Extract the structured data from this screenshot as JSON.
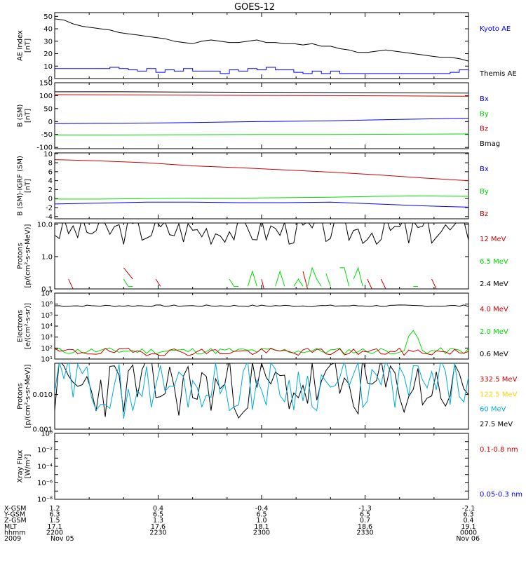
{
  "title": "GOES-12",
  "colors": {
    "black": "#000000",
    "blue": "#0000ff",
    "red": "#cc0000",
    "green": "#00dd00",
    "yellow": "#ffd000",
    "cyan": "#00aadd"
  },
  "chart_data": [
    {
      "type": "line",
      "id": "ae",
      "ylabel_lines": [
        "AE Index",
        "[nT]"
      ],
      "yticks": [
        {
          "v": 0,
          "label": "0"
        },
        {
          "v": 10,
          "label": "10"
        },
        {
          "v": 20,
          "label": "20"
        },
        {
          "v": 30,
          "label": "30"
        },
        {
          "v": 40,
          "label": "40"
        },
        {
          "v": 50,
          "label": "50"
        }
      ],
      "ylim": [
        0,
        53
      ],
      "log": false,
      "series": [
        {
          "name": "Kyoto AE",
          "color": "blue",
          "step": true,
          "t": [
            0,
            3,
            6,
            8,
            10,
            12,
            14,
            16,
            18,
            20,
            22,
            24,
            26,
            28,
            30,
            32,
            34,
            36,
            38,
            40,
            42,
            44,
            46,
            48,
            50,
            52,
            54,
            56,
            58,
            60,
            62,
            64,
            66,
            68,
            70,
            72,
            74,
            76,
            78,
            80,
            82,
            84,
            86,
            88,
            90
          ],
          "y": [
            8,
            8,
            8,
            8,
            8,
            9,
            8,
            7,
            6,
            8,
            5,
            7,
            6,
            8,
            6,
            6,
            6,
            4,
            7,
            6,
            8,
            7,
            9,
            7,
            7,
            5,
            4,
            6,
            4,
            6,
            4,
            4,
            4,
            4,
            4,
            4,
            4,
            4,
            4,
            4,
            4,
            4,
            5,
            7,
            5
          ]
        },
        {
          "name": "Themis AE",
          "color": "black",
          "step": false,
          "t": [
            0,
            2,
            4,
            6,
            8,
            10,
            12,
            14,
            16,
            18,
            20,
            22,
            24,
            26,
            28,
            30,
            32,
            34,
            36,
            38,
            40,
            42,
            44,
            46,
            48,
            50,
            52,
            54,
            56,
            58,
            60,
            62,
            64,
            66,
            68,
            70,
            72,
            74,
            76,
            78,
            80,
            82,
            84,
            86,
            88,
            90
          ],
          "y": [
            48,
            47,
            44,
            42,
            41,
            40,
            39,
            37,
            36,
            35,
            34,
            33,
            32,
            30,
            29,
            28,
            30,
            31,
            30,
            29,
            29,
            30,
            31,
            29,
            29,
            28,
            28,
            27,
            28,
            26,
            26,
            24,
            23,
            21,
            21,
            22,
            23,
            22,
            21,
            20,
            19,
            18,
            17,
            17,
            16,
            14
          ]
        }
      ],
      "legend": [
        {
          "label": "Kyoto AE",
          "color": "blue"
        },
        {
          "label": "Themis AE",
          "color": "black"
        }
      ]
    },
    {
      "type": "line",
      "id": "bsm",
      "ylabel_lines": [
        "B (SM)",
        "[nT]"
      ],
      "yticks": [
        {
          "v": -100,
          "label": "-100"
        },
        {
          "v": -50,
          "label": "-50"
        },
        {
          "v": 0,
          "label": "0"
        },
        {
          "v": 50,
          "label": "50"
        },
        {
          "v": 100,
          "label": "100"
        },
        {
          "v": 150,
          "label": "150"
        }
      ],
      "ylim": [
        -105,
        150
      ],
      "log": false,
      "series": [
        {
          "name": "Bx",
          "color": "blue",
          "t": [
            0,
            15,
            30,
            45,
            60,
            75,
            90
          ],
          "y": [
            -8,
            -7,
            -4,
            0,
            3,
            8,
            13
          ]
        },
        {
          "name": "By",
          "color": "green",
          "t": [
            0,
            15,
            30,
            45,
            60,
            75,
            90
          ],
          "y": [
            -52,
            -52,
            -51,
            -50,
            -50,
            -49,
            -48
          ]
        },
        {
          "name": "Bz",
          "color": "red",
          "t": [
            0,
            15,
            30,
            45,
            60,
            75,
            90
          ],
          "y": [
            104,
            103,
            102,
            101,
            100,
            99,
            98
          ]
        },
        {
          "name": "Bmag",
          "color": "black",
          "t": [
            0,
            15,
            30,
            45,
            60,
            75,
            90
          ],
          "y": [
            115,
            115,
            114,
            113,
            112,
            111,
            110
          ]
        }
      ],
      "legend": [
        {
          "label": "Bx",
          "color": "blue"
        },
        {
          "label": "By",
          "color": "green"
        },
        {
          "label": "Bz",
          "color": "red"
        },
        {
          "label": "Bmag",
          "color": "black"
        }
      ]
    },
    {
      "type": "line",
      "id": "bdiff",
      "ylabel_lines": [
        "B (SM)-IGRF (SM)",
        "[nT]"
      ],
      "yticks": [
        {
          "v": -4,
          "label": "-4"
        },
        {
          "v": -2,
          "label": "-2"
        },
        {
          "v": 0,
          "label": "0"
        },
        {
          "v": 2,
          "label": "2"
        },
        {
          "v": 4,
          "label": "4"
        },
        {
          "v": 6,
          "label": "6"
        },
        {
          "v": 8,
          "label": "8"
        },
        {
          "v": 10,
          "label": "10"
        }
      ],
      "ylim": [
        -4.5,
        10.2
      ],
      "log": false,
      "series": [
        {
          "name": "Bx",
          "color": "blue",
          "t": [
            0,
            10,
            20,
            30,
            40,
            50,
            60,
            70,
            80,
            90
          ],
          "y": [
            -1.2,
            -1.0,
            -0.8,
            -0.8,
            -0.9,
            -0.9,
            -0.8,
            -1.2,
            -1.6,
            -1.9
          ]
        },
        {
          "name": "By",
          "color": "green",
          "t": [
            0,
            10,
            20,
            30,
            40,
            50,
            60,
            70,
            80,
            90
          ],
          "y": [
            -0.1,
            -0.1,
            0,
            0.1,
            0.1,
            0.2,
            0.3,
            0.5,
            0.6,
            0.5
          ]
        },
        {
          "name": "Bz",
          "color": "red",
          "t": [
            0,
            10,
            20,
            30,
            40,
            50,
            60,
            70,
            80,
            90
          ],
          "y": [
            8.7,
            8.4,
            8.0,
            7.3,
            6.9,
            6.4,
            5.9,
            5.3,
            4.6,
            4.0
          ]
        }
      ],
      "legend": [
        {
          "label": "Bx",
          "color": "blue"
        },
        {
          "label": "By",
          "color": "green"
        },
        {
          "label": "Bz",
          "color": "red"
        }
      ]
    },
    {
      "type": "line",
      "id": "prot1",
      "ylabel_lines": [
        "Protons",
        "[p/(cm²-s-sr-MeV)]"
      ],
      "yticks": [
        {
          "v": 0.1,
          "label": "0.1"
        },
        {
          "v": 1,
          "label": "1.0"
        },
        {
          "v": 10,
          "label": "10.0"
        }
      ],
      "ylim": [
        0.1,
        11
      ],
      "log": true,
      "series": [
        {
          "name": "2.4 MeV",
          "color": "black",
          "noisy": {
            "n": 90,
            "base": 6.5,
            "amp": 0.45,
            "seed": 3,
            "dips": [
              [
                37,
                2.8
              ],
              [
                77,
                2.6
              ],
              [
                71,
                3.4
              ]
            ]
          }
        },
        {
          "name": "12 MeV",
          "color": "red",
          "segments": [
            [
              [
                3,
                0.2
              ],
              [
                4,
                0.1
              ]
            ],
            [
              [
                15,
                0.45
              ],
              [
                17,
                0.2
              ]
            ],
            [
              [
                22,
                0.2
              ],
              [
                23,
                0.12
              ]
            ],
            [
              [
                45,
                0.2
              ],
              [
                45.5,
                0.1
              ]
            ],
            [
              [
                54,
                0.35
              ],
              [
                55,
                0.1
              ]
            ],
            [
              [
                68,
                0.2
              ],
              [
                69,
                0.1
              ]
            ],
            [
              [
                71,
                0.2
              ],
              [
                72,
                0.1
              ]
            ],
            [
              [
                82,
                0.2
              ],
              [
                83,
                0.1
              ]
            ]
          ]
        },
        {
          "name": "6.5 MeV",
          "color": "green",
          "segments": [
            [
              [
                15,
                0.2
              ],
              [
                16,
                0.12
              ],
              [
                17,
                0.12
              ]
            ],
            [
              [
                38,
                0.2
              ],
              [
                39,
                0.12
              ],
              [
                40,
                0.12
              ]
            ],
            [
              [
                42,
                0.12
              ],
              [
                43,
                0.35
              ],
              [
                44,
                0.12
              ]
            ],
            [
              [
                48,
                0.12
              ],
              [
                49,
                0.35
              ],
              [
                50,
                0.12
              ]
            ],
            [
              [
                52,
                0.12
              ],
              [
                53,
                0.2
              ],
              [
                54,
                0.12
              ]
            ],
            [
              [
                55,
                0.12
              ],
              [
                56,
                0.45
              ],
              [
                57,
                0.2
              ],
              [
                58,
                0.12
              ]
            ],
            [
              [
                59,
                0.3
              ],
              [
                60,
                0.12
              ]
            ],
            [
              [
                62,
                0.45
              ],
              [
                63,
                0.45
              ],
              [
                64,
                0.12
              ]
            ],
            [
              [
                65,
                0.2
              ],
              [
                66,
                0.45
              ],
              [
                67,
                0.12
              ]
            ],
            [
              [
                78,
                0.12
              ],
              [
                79,
                0.12
              ]
            ]
          ]
        }
      ],
      "legend": [
        {
          "label": "12 MeV",
          "color": "red"
        },
        {
          "label": "6.5 MeV",
          "color": "green"
        },
        {
          "label": "2.4 MeV",
          "color": "black"
        }
      ]
    },
    {
      "type": "line",
      "id": "elec",
      "ylabel_lines": [
        "Electrons",
        "[e/(cm²-s-sr)]"
      ],
      "yticks": [
        {
          "v": 10,
          "label": "10¹"
        },
        {
          "v": 100,
          "label": "10²"
        },
        {
          "v": 1000,
          "label": "10³"
        },
        {
          "v": 10000,
          "label": "10⁴"
        },
        {
          "v": 100000,
          "label": "10⁵"
        },
        {
          "v": 1000000,
          "label": "10⁶"
        },
        {
          "v": 10000000,
          "label": "10⁷"
        }
      ],
      "ylim": [
        10,
        10000000
      ],
      "log": true,
      "series": [
        {
          "name": "0.6 MeV",
          "color": "black",
          "noisy": {
            "n": 90,
            "base": 700000,
            "amp": 0.08,
            "seed": 7,
            "dips": []
          }
        },
        {
          "name": "2.0 MeV",
          "color": "green",
          "noisy": {
            "n": 90,
            "base": 55,
            "amp": 0.3,
            "seed": 11,
            "dips": []
          },
          "spike": [
            [
              76,
              55
            ],
            [
              77,
              1200
            ],
            [
              78,
              4000
            ],
            [
              79,
              800
            ],
            [
              80,
              60
            ]
          ]
        },
        {
          "name": "4.0 MeV",
          "color": "red",
          "noisy": {
            "n": 90,
            "base": 45,
            "amp": 0.35,
            "seed": 19,
            "dips": []
          }
        }
      ],
      "legend": [
        {
          "label": "4.0 MeV",
          "color": "red"
        },
        {
          "label": "2.0 MeV",
          "color": "green"
        },
        {
          "label": "0.6 MeV",
          "color": "black"
        }
      ]
    },
    {
      "type": "line",
      "id": "prot2",
      "ylabel_lines": [
        "Protons",
        "[p/(cm²-s-sr-MeV)]"
      ],
      "yticks": [
        {
          "v": 0.001,
          "label": "0.001"
        },
        {
          "v": 0.01,
          "label": "0.010"
        }
      ],
      "ylim": [
        0.001,
        0.08
      ],
      "log": true,
      "series": [
        {
          "name": "27.5 MeV",
          "color": "black",
          "noisy": {
            "n": 90,
            "base": 0.016,
            "amp": 0.9,
            "seed": 23,
            "dips": []
          }
        },
        {
          "name": "60 MeV",
          "color": "cyan",
          "noisy": {
            "n": 90,
            "base": 0.019,
            "amp": 0.75,
            "seed": 29,
            "dips": [
              [
                15,
                0.002
              ],
              [
                12,
                0.004
              ],
              [
                40,
                0.005
              ]
            ]
          }
        }
      ],
      "legend": [
        {
          "label": "332.5 MeV",
          "color": "red"
        },
        {
          "label": "122.5 MeV",
          "color": "yellow"
        },
        {
          "label": "60 MeV",
          "color": "cyan"
        },
        {
          "label": "27.5 MeV",
          "color": "black"
        }
      ]
    },
    {
      "type": "line",
      "id": "xray",
      "ylabel_lines": [
        "Xray Flux",
        "[W/m²]"
      ],
      "yticks": [
        {
          "v": 1e-08,
          "label": "10⁻⁸"
        },
        {
          "v": 1e-07,
          "label": ""
        },
        {
          "v": 1e-06,
          "label": "10⁻⁶"
        },
        {
          "v": 1e-05,
          "label": ""
        },
        {
          "v": 0.0001,
          "label": "10⁻⁴"
        },
        {
          "v": 0.001,
          "label": ""
        },
        {
          "v": 0.01,
          "label": "10⁻²"
        },
        {
          "v": 0.1,
          "label": ""
        },
        {
          "v": 1,
          "label": "10⁰"
        }
      ],
      "ylim": [
        1e-08,
        1
      ],
      "log": true,
      "series": [],
      "legend": [
        {
          "label": "0.1-0.8 nm",
          "color": "red"
        },
        {
          "label": "0.05-0.3 nm",
          "color": "blue"
        }
      ]
    }
  ],
  "xaxis": {
    "row_labels": [
      "X-GSM",
      "Y-GSM",
      "Z-GSM",
      "MLT",
      "hhmm",
      "2009"
    ],
    "ticks": [
      {
        "t": 0,
        "values": [
          "1.2",
          "6.3",
          "1.5",
          "17.1",
          "2200",
          "Nov 05"
        ]
      },
      {
        "t": 22.5,
        "values": [
          "0.4",
          "6.5",
          "1.3",
          "17.6",
          "2230",
          ""
        ]
      },
      {
        "t": 45,
        "values": [
          "-0.4",
          "6.5",
          "1.0",
          "18.1",
          "2300",
          ""
        ]
      },
      {
        "t": 67.5,
        "values": [
          "-1.3",
          "6.5",
          "0.7",
          "18.6",
          "2330",
          ""
        ]
      },
      {
        "t": 90,
        "values": [
          "-2.1",
          "6.3",
          "0.4",
          "19.1",
          "0000",
          "Nov 06"
        ]
      }
    ]
  }
}
